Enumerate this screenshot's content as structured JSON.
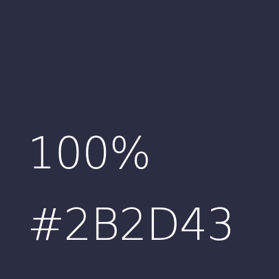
{
  "swatch": {
    "background_color": "#2B2D43",
    "text_color": "#FFFFFF",
    "opacity_label": "100%",
    "hex_label": "#2B2D43"
  }
}
